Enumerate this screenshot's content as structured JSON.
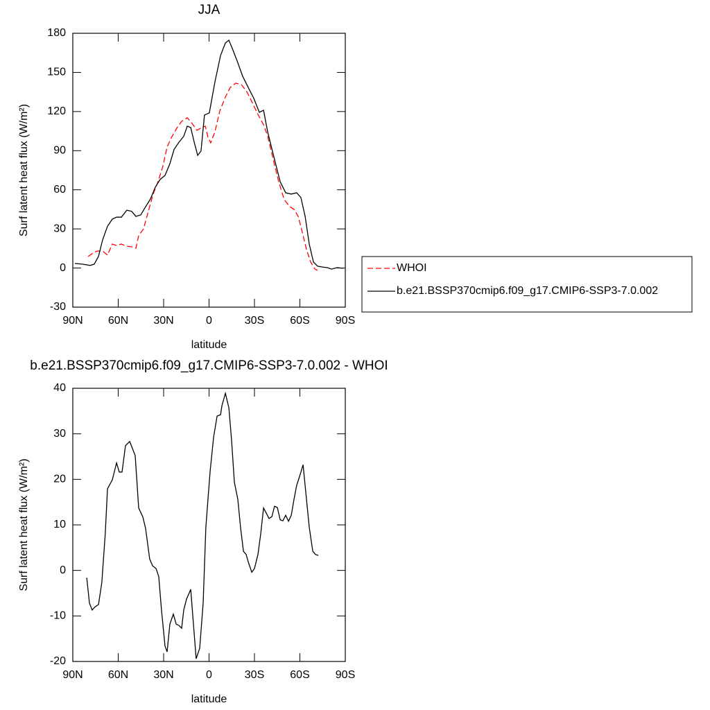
{
  "chart_data": [
    {
      "type": "line",
      "title": "JJA",
      "xlabel": "latitude",
      "ylabel": "Surf latent heat flux (W/m²)",
      "xlim": [
        90,
        -90
      ],
      "xticks": [
        {
          "value": 90,
          "label": "90N"
        },
        {
          "value": 60,
          "label": "60N"
        },
        {
          "value": 30,
          "label": "30N"
        },
        0,
        {
          "value": -30,
          "label": "30S"
        },
        {
          "value": -60,
          "label": "60S"
        },
        {
          "value": -90,
          "label": "90S"
        }
      ],
      "ylim": [
        -30,
        180
      ],
      "yticks": [
        -30,
        0,
        30,
        60,
        90,
        120,
        150,
        180
      ],
      "legend": "right",
      "series": [
        {
          "name": "WHOI",
          "color": "#ff0000",
          "line_style": "dashed",
          "x": [
            79.9,
            77.2,
            74,
            70.3,
            67.1,
            63.9,
            61.1,
            57.9,
            54.7,
            51.1,
            48.3,
            46.5,
            43.3,
            40.1,
            36.9,
            33.7,
            30.5,
            27.7,
            24.5,
            21.3,
            18.1,
            14.4,
            11.2,
            8,
            4.8,
            2.5,
            0.7,
            -1.1,
            -3.9,
            -7.1,
            -10.8,
            -14,
            -17.6,
            -21.3,
            -24.9,
            -28.6,
            -32.3,
            -36,
            -38.7,
            -42.4,
            -46,
            -49.7,
            -53.3,
            -56.1,
            -58.9,
            -61.6,
            -64.4,
            -67.1,
            -69.9,
            -71.7
          ],
          "values": [
            8.8,
            11,
            13,
            13,
            9.9,
            18.4,
            17.3,
            18.4,
            16.8,
            16.3,
            15.2,
            24.8,
            30,
            43.4,
            56.7,
            66.2,
            77.9,
            92.8,
            100.8,
            107.2,
            112.5,
            115.2,
            110.9,
            105.6,
            107.7,
            108.8,
            100.3,
            96,
            104.5,
            120.5,
            131.1,
            138.5,
            141.7,
            140.7,
            135.3,
            126.8,
            117.8,
            109.8,
            101.3,
            83.2,
            66.2,
            52.4,
            47.1,
            45,
            39.6,
            27.4,
            14.1,
            4.6,
            -0.7,
            -1.8
          ]
        },
        {
          "name": "b.e21.BSSP370cmip6.f09_g17.CMIP6-SSP3-7.0.002",
          "color": "#000000",
          "line_style": "solid",
          "x": [
            88.6,
            83.9,
            78.5,
            75.8,
            73,
            70.3,
            67.1,
            63.9,
            61.1,
            57.9,
            54.3,
            51.1,
            48.3,
            45.1,
            41.9,
            38.7,
            35.5,
            32.3,
            29.1,
            25.9,
            23.1,
            19.9,
            16.7,
            14.4,
            12.1,
            9.8,
            7.5,
            5.3,
            3,
            -0.2,
            -3.9,
            -7.6,
            -10.8,
            -13.1,
            -15.4,
            -18.6,
            -22.2,
            -25.9,
            -29.6,
            -33.2,
            -36,
            -38.7,
            -42.8,
            -47,
            -50.6,
            -54.3,
            -57.9,
            -60.7,
            -63.5,
            -66.2,
            -69,
            -71.7,
            -74.9,
            -78.1,
            -80.9,
            -84.5,
            -88.7
          ],
          "values": [
            3.5,
            3,
            2,
            3,
            9,
            21.6,
            32,
            37.5,
            39,
            39,
            44.4,
            43.5,
            39.6,
            40.7,
            47,
            53,
            62,
            68,
            71,
            80,
            91,
            96.5,
            101,
            108.8,
            107.7,
            96.5,
            86.4,
            89.7,
            117.3,
            118.9,
            142.8,
            163,
            172.6,
            174.7,
            168.3,
            158.7,
            147,
            138.5,
            130,
            119.4,
            121,
            104.5,
            85.4,
            66.2,
            57.7,
            56.7,
            57.7,
            54,
            39.6,
            18.4,
            4.6,
            1.4,
            0.8,
            0.3,
            -0.8,
            0.3,
            -0.2
          ]
        }
      ]
    },
    {
      "type": "line",
      "title": "b.e21.BSSP370cmip6.f09_g17.CMIP6-SSP3-7.0.002 - WHOI",
      "xlabel": "latitude",
      "ylabel": "Surf latent heat flux (W/m²)",
      "xlim": [
        90,
        -90
      ],
      "xticks": [
        {
          "value": 90,
          "label": "90N"
        },
        {
          "value": 60,
          "label": "60N"
        },
        {
          "value": 30,
          "label": "30N"
        },
        0,
        {
          "value": -30,
          "label": "30S"
        },
        {
          "value": -60,
          "label": "60S"
        },
        {
          "value": -90,
          "label": "90S"
        }
      ],
      "ylim": [
        -20,
        40
      ],
      "yticks": [
        -20,
        -10,
        0,
        10,
        20,
        30,
        40
      ],
      "series": [
        {
          "color": "#000000",
          "line_style": "solid",
          "x": [
            80.8,
            79,
            77.2,
            75.3,
            73,
            70.8,
            68.5,
            67.1,
            63.9,
            61.1,
            59.3,
            57.5,
            55.2,
            52.4,
            48.8,
            46.5,
            43.7,
            41.9,
            39.2,
            37.3,
            35,
            33.2,
            31.4,
            29.1,
            27.7,
            25.9,
            23.6,
            21.7,
            19.9,
            18.1,
            16.7,
            14.9,
            12.1,
            10.3,
            8.5,
            6.2,
            3.9,
            2.1,
            -0.7,
            -3,
            -5.3,
            -7.6,
            -8.5,
            -10.8,
            -13.1,
            -14.9,
            -16.7,
            -19,
            -20.8,
            -22.7,
            -24.5,
            -25.9,
            -28.2,
            -30,
            -32.3,
            -34.1,
            -36,
            -37.8,
            -39.6,
            -41.5,
            -43.3,
            -45.1,
            -47,
            -48.8,
            -50.6,
            -52.5,
            -54.3,
            -56.1,
            -57.9,
            -59.7,
            -62.1,
            -63.9,
            -66.2,
            -68.5,
            -70.3,
            -72.2
          ],
          "values": [
            -1.6,
            -7.2,
            -8.7,
            -8,
            -7.5,
            -2.6,
            8.3,
            17.9,
            19.9,
            23.6,
            21.6,
            21.6,
            27.4,
            28.3,
            25.2,
            13.7,
            11.7,
            9.2,
            2.5,
            1,
            0.4,
            -1.4,
            -8.7,
            -16.6,
            -17.9,
            -11.8,
            -9.6,
            -11.8,
            -12.1,
            -12.7,
            -8.7,
            -6.3,
            -4.2,
            -11.8,
            -19.4,
            -17.1,
            -7.2,
            9.5,
            21.7,
            29.3,
            33.9,
            34.2,
            36.2,
            38.9,
            35.7,
            28.6,
            19.4,
            15.6,
            9.5,
            4.2,
            3.5,
            1.9,
            -0.4,
            0.4,
            3.5,
            8,
            13.7,
            12.6,
            11.4,
            11.8,
            14.1,
            13.8,
            11.1,
            10.9,
            12.1,
            10.8,
            12.1,
            15.6,
            18.7,
            20.5,
            23.2,
            17.2,
            9.5,
            4.2,
            3.5,
            3.3
          ]
        }
      ]
    }
  ]
}
